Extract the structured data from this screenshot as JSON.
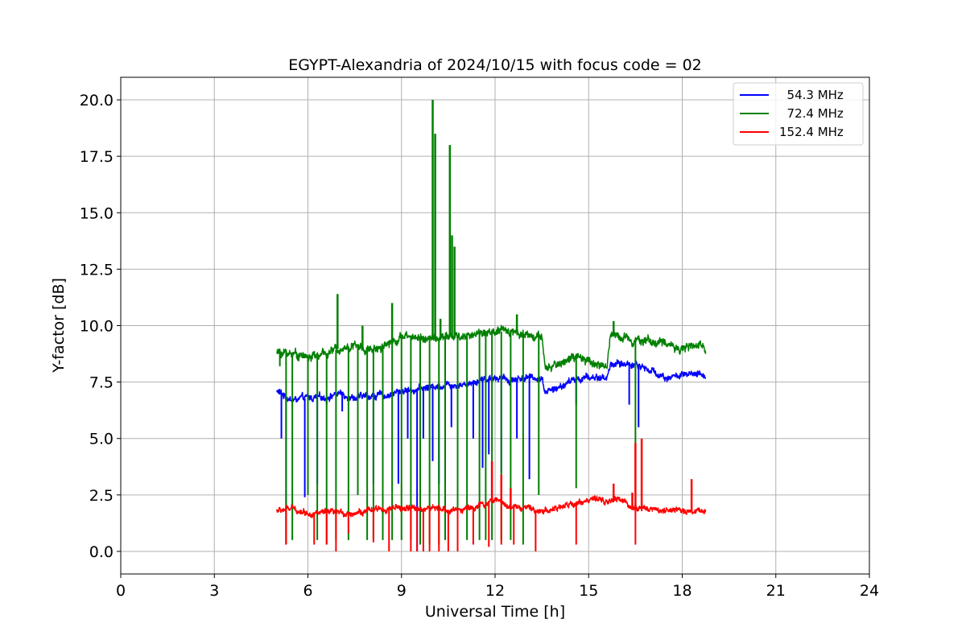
{
  "chart_data": {
    "type": "line",
    "title": "EGYPT-Alexandria of 2024/10/15 with focus code = 02",
    "xlabel": "Universal Time [h]",
    "ylabel": "Y-factor [dB]",
    "xlim": [
      0,
      24
    ],
    "ylim": [
      -1.0,
      21.0
    ],
    "xticks": [
      0,
      3,
      6,
      9,
      12,
      15,
      18,
      21,
      24
    ],
    "xtick_labels": [
      "0",
      "3",
      "6",
      "9",
      "12",
      "15",
      "18",
      "21",
      "24"
    ],
    "yticks": [
      0.0,
      2.5,
      5.0,
      7.5,
      10.0,
      12.5,
      15.0,
      17.5,
      20.0
    ],
    "ytick_labels": [
      "0.0",
      "2.5",
      "5.0",
      "7.5",
      "10.0",
      "12.5",
      "15.0",
      "17.5",
      "20.0"
    ],
    "grid": true,
    "legend_position": "top-right",
    "series": [
      {
        "name": "  54.3 MHz",
        "color": "#0000ff",
        "x_range": [
          5.0,
          18.75
        ],
        "baseline": [
          [
            5.0,
            7.1
          ],
          [
            5.5,
            6.7
          ],
          [
            6.0,
            6.8
          ],
          [
            6.5,
            6.8
          ],
          [
            7.0,
            7.0
          ],
          [
            7.5,
            6.8
          ],
          [
            8.0,
            6.9
          ],
          [
            8.5,
            6.9
          ],
          [
            9.0,
            7.1
          ],
          [
            9.5,
            7.2
          ],
          [
            10.0,
            7.3
          ],
          [
            10.5,
            7.4
          ],
          [
            11.0,
            7.4
          ],
          [
            11.5,
            7.6
          ],
          [
            12.0,
            7.7
          ],
          [
            12.5,
            7.6
          ],
          [
            13.0,
            7.7
          ],
          [
            13.5,
            7.7
          ],
          [
            13.6,
            7.1
          ],
          [
            14.0,
            7.2
          ],
          [
            14.5,
            7.6
          ],
          [
            15.0,
            7.7
          ],
          [
            15.6,
            7.7
          ],
          [
            15.7,
            8.3
          ],
          [
            16.5,
            8.3
          ],
          [
            17.0,
            8.0
          ],
          [
            17.5,
            7.7
          ],
          [
            18.0,
            7.8
          ],
          [
            18.75,
            7.8
          ]
        ],
        "noise": 0.2,
        "dips": [
          [
            5.15,
            5.0
          ],
          [
            5.3,
            0.3
          ],
          [
            5.9,
            2.4
          ],
          [
            6.3,
            3.0
          ],
          [
            6.6,
            6.5
          ],
          [
            7.1,
            6.2
          ],
          [
            7.6,
            3.3
          ],
          [
            8.1,
            3.0
          ],
          [
            8.4,
            6.5
          ],
          [
            8.9,
            3.0
          ],
          [
            9.2,
            5.0
          ],
          [
            9.5,
            0.0
          ],
          [
            9.7,
            5.0
          ],
          [
            10.0,
            4.0
          ],
          [
            10.2,
            3.0
          ],
          [
            10.6,
            5.5
          ],
          [
            11.3,
            5.0
          ],
          [
            11.6,
            3.7
          ],
          [
            11.8,
            4.3
          ],
          [
            12.2,
            3.5
          ],
          [
            12.7,
            5.0
          ],
          [
            13.1,
            3.2
          ],
          [
            14.6,
            6.5
          ],
          [
            16.3,
            6.5
          ],
          [
            16.6,
            5.5
          ]
        ],
        "spikes": []
      },
      {
        "name": "  72.4 MHz",
        "color": "#008000",
        "x_range": [
          5.0,
          18.75
        ],
        "baseline": [
          [
            5.0,
            8.8
          ],
          [
            5.5,
            8.8
          ],
          [
            6.0,
            8.6
          ],
          [
            6.5,
            8.7
          ],
          [
            7.0,
            9.0
          ],
          [
            7.5,
            9.1
          ],
          [
            8.0,
            8.9
          ],
          [
            8.5,
            9.2
          ],
          [
            9.0,
            9.5
          ],
          [
            9.5,
            9.5
          ],
          [
            10.0,
            9.4
          ],
          [
            10.5,
            9.5
          ],
          [
            11.0,
            9.5
          ],
          [
            11.5,
            9.7
          ],
          [
            12.0,
            9.7
          ],
          [
            12.5,
            9.8
          ],
          [
            13.0,
            9.6
          ],
          [
            13.5,
            9.5
          ],
          [
            13.6,
            8.0
          ],
          [
            14.0,
            8.3
          ],
          [
            14.5,
            8.6
          ],
          [
            15.0,
            8.4
          ],
          [
            15.6,
            8.2
          ],
          [
            15.7,
            9.6
          ],
          [
            16.5,
            9.4
          ],
          [
            17.0,
            9.3
          ],
          [
            17.5,
            9.2
          ],
          [
            18.0,
            9.0
          ],
          [
            18.75,
            9.1
          ]
        ],
        "noise": 0.25,
        "dips": [
          [
            5.1,
            8.2
          ],
          [
            5.3,
            0.3
          ],
          [
            5.5,
            0.5
          ],
          [
            6.0,
            2.5
          ],
          [
            6.3,
            0.5
          ],
          [
            6.6,
            0.3
          ],
          [
            6.9,
            0.5
          ],
          [
            7.3,
            0.5
          ],
          [
            7.6,
            2.5
          ],
          [
            7.9,
            0.5
          ],
          [
            8.1,
            0.5
          ],
          [
            8.4,
            0.5
          ],
          [
            8.7,
            0.5
          ],
          [
            9.0,
            0.5
          ],
          [
            9.3,
            0.5
          ],
          [
            9.6,
            0.3
          ],
          [
            9.9,
            0.3
          ],
          [
            10.2,
            0.3
          ],
          [
            10.4,
            0.5
          ],
          [
            10.8,
            0.5
          ],
          [
            11.1,
            0.5
          ],
          [
            11.5,
            0.5
          ],
          [
            11.7,
            0.5
          ],
          [
            11.9,
            0.5
          ],
          [
            12.2,
            0.5
          ],
          [
            12.5,
            0.5
          ],
          [
            12.9,
            0.3
          ],
          [
            13.4,
            2.5
          ],
          [
            14.6,
            2.8
          ],
          [
            16.5,
            2.5
          ]
        ],
        "spikes": [
          [
            6.95,
            11.4
          ],
          [
            7.75,
            10.0
          ],
          [
            8.7,
            11.0
          ],
          [
            10.0,
            20.0
          ],
          [
            10.08,
            18.5
          ],
          [
            10.55,
            18.0
          ],
          [
            10.62,
            14.0
          ],
          [
            10.7,
            13.5
          ],
          [
            10.25,
            10.3
          ],
          [
            12.7,
            10.5
          ],
          [
            15.8,
            10.2
          ]
        ]
      },
      {
        "name": "152.4 MHz",
        "color": "#ff0000",
        "x_range": [
          5.0,
          18.75
        ],
        "baseline": [
          [
            5.0,
            1.8
          ],
          [
            5.5,
            1.9
          ],
          [
            6.0,
            1.7
          ],
          [
            6.5,
            1.7
          ],
          [
            7.0,
            1.7
          ],
          [
            7.5,
            1.7
          ],
          [
            8.0,
            1.8
          ],
          [
            8.5,
            1.9
          ],
          [
            9.0,
            1.9
          ],
          [
            9.5,
            1.9
          ],
          [
            10.0,
            1.9
          ],
          [
            10.5,
            1.8
          ],
          [
            11.0,
            1.9
          ],
          [
            11.5,
            2.0
          ],
          [
            12.0,
            2.3
          ],
          [
            12.5,
            2.0
          ],
          [
            13.0,
            1.9
          ],
          [
            13.5,
            1.8
          ],
          [
            14.0,
            1.9
          ],
          [
            14.5,
            2.1
          ],
          [
            15.0,
            2.3
          ],
          [
            15.5,
            2.2
          ],
          [
            16.0,
            2.3
          ],
          [
            16.5,
            1.9
          ],
          [
            17.0,
            1.9
          ],
          [
            17.5,
            1.8
          ],
          [
            18.0,
            1.8
          ],
          [
            18.75,
            1.8
          ]
        ],
        "noise": 0.18,
        "dips": [
          [
            5.3,
            0.3
          ],
          [
            6.2,
            0.3
          ],
          [
            6.6,
            0.3
          ],
          [
            6.9,
            0.0
          ],
          [
            7.3,
            0.8
          ],
          [
            8.1,
            0.4
          ],
          [
            8.6,
            0.0
          ],
          [
            9.3,
            0.0
          ],
          [
            9.5,
            0.0
          ],
          [
            9.7,
            0.0
          ],
          [
            9.9,
            0.0
          ],
          [
            10.2,
            0.0
          ],
          [
            10.5,
            0.0
          ],
          [
            10.8,
            0.0
          ],
          [
            11.3,
            0.3
          ],
          [
            11.8,
            0.2
          ],
          [
            12.2,
            0.3
          ],
          [
            12.6,
            0.3
          ],
          [
            13.3,
            0.0
          ],
          [
            14.6,
            0.3
          ],
          [
            16.5,
            0.3
          ]
        ],
        "spikes": [
          [
            11.9,
            4.0
          ],
          [
            12.2,
            3.4
          ],
          [
            12.5,
            2.8
          ],
          [
            15.8,
            3.0
          ],
          [
            16.4,
            2.6
          ],
          [
            16.5,
            4.8
          ],
          [
            16.7,
            5.0
          ],
          [
            18.3,
            3.2
          ]
        ]
      }
    ]
  }
}
